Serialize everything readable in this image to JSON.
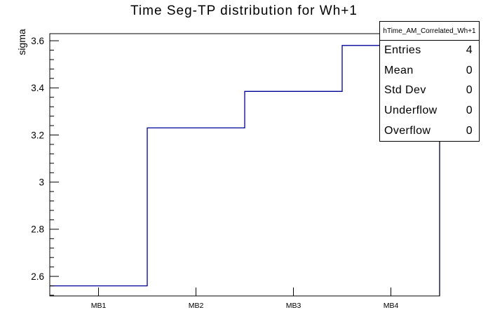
{
  "title": "Time Seg-TP distribution for Wh+1",
  "colors": {
    "hist_line": "#000099",
    "axis": "#000000",
    "background": "#ffffff"
  },
  "stats_box": {
    "header": "hTime_AM_Correlated_Wh+1",
    "rows": [
      {
        "label": "Entries",
        "value": "4"
      },
      {
        "label": "Mean",
        "value": "0"
      },
      {
        "label": "Std Dev",
        "value": "0"
      },
      {
        "label": "Underflow",
        "value": "0"
      },
      {
        "label": "Overflow",
        "value": "0"
      }
    ]
  },
  "chart_data": {
    "type": "line",
    "line_style": "step-histogram",
    "series_name": "hTime_AM_Correlated_Wh+1",
    "categories": [
      "MB1",
      "MB2",
      "MB3",
      "MB4"
    ],
    "values": [
      2.56,
      3.23,
      3.385,
      3.58
    ],
    "title": "Time Seg-TP distribution for Wh+1",
    "xlabel": "",
    "ylabel": "sigma",
    "ylim": [
      2.517,
      3.63
    ],
    "yticks": [
      2.6,
      2.8,
      3,
      3.2,
      3.4,
      3.6
    ],
    "ytick_labels": [
      "2.6",
      "2.8",
      "3",
      "3.2",
      "3.4",
      "3.6"
    ],
    "minor_ytick_step": 0.04,
    "grid": false,
    "legend": "none",
    "line_color": "#000099"
  }
}
